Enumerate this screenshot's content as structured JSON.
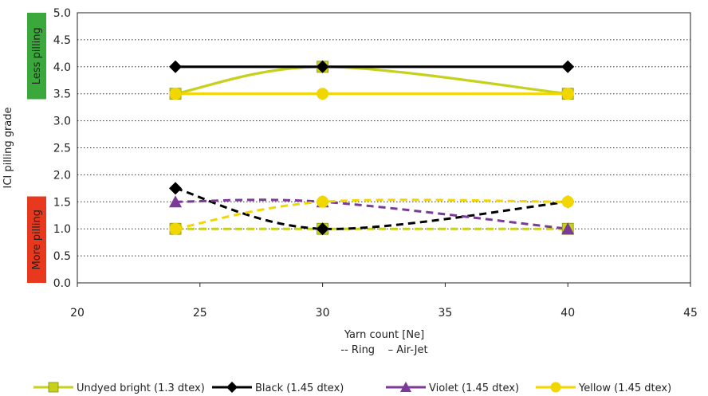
{
  "chart_data": {
    "type": "line",
    "xlabel": "Yarn count [Ne]",
    "xlabel_sub": "-- Ring    – Air-Jet",
    "ylabel": "ICI pilling grade",
    "xlim": [
      20,
      45
    ],
    "ylim": [
      0,
      5
    ],
    "x_ticks": [
      "20",
      "25",
      "30",
      "35",
      "40",
      "45"
    ],
    "y_ticks": [
      "0.0",
      "0.5",
      "1.0",
      "1.5",
      "2.0",
      "2.5",
      "3.0",
      "3.5",
      "4.0",
      "4.5",
      "5.0"
    ],
    "grid": "horizontal dotted",
    "legend_position": "bottom",
    "bands": {
      "upper": {
        "label": "Less pilling",
        "color": "#3aa83a",
        "range": [
          3.4,
          5.0
        ]
      },
      "lower": {
        "label": "More pilling",
        "color": "#e8391e",
        "range": [
          0.0,
          1.6
        ]
      }
    },
    "series": [
      {
        "name": "Undyed bright (1.3 dtex)",
        "color": "#c5d11b",
        "marker": "square",
        "process": "Air-Jet",
        "x": [
          24,
          30,
          40
        ],
        "values": [
          3.5,
          4.0,
          3.5
        ]
      },
      {
        "name": "Undyed bright (1.3 dtex)",
        "color": "#c5d11b",
        "marker": "square",
        "process": "Ring",
        "x": [
          24,
          30,
          40
        ],
        "values": [
          1.0,
          1.0,
          1.0
        ]
      },
      {
        "name": "Black (1.45 dtex)",
        "color": "#000000",
        "marker": "diamond",
        "process": "Air-Jet",
        "x": [
          24,
          30,
          40
        ],
        "values": [
          4.0,
          4.0,
          4.0
        ]
      },
      {
        "name": "Black (1.45 dtex)",
        "color": "#000000",
        "marker": "diamond",
        "process": "Ring",
        "x": [
          24,
          30,
          40
        ],
        "values": [
          1.75,
          1.0,
          1.5
        ]
      },
      {
        "name": "Violet (1.45 dtex)",
        "color": "#7a3a96",
        "marker": "triangle",
        "process": "Ring",
        "x": [
          24,
          30,
          40
        ],
        "values": [
          1.5,
          1.5,
          1.0
        ]
      },
      {
        "name": "Yellow (1.45 dtex)",
        "color": "#f2d600",
        "marker": "circle",
        "process": "Air-Jet",
        "x": [
          24,
          30,
          40
        ],
        "values": [
          3.5,
          3.5,
          3.5
        ]
      },
      {
        "name": "Yellow (1.45 dtex)",
        "color": "#f2d600",
        "marker": "circle",
        "process": "Ring",
        "x": [
          24,
          30,
          40
        ],
        "values": [
          1.0,
          1.5,
          1.5
        ]
      }
    ],
    "legend": [
      {
        "label": "Undyed bright (1.3 dtex)",
        "color": "#c5d11b",
        "marker": "square"
      },
      {
        "label": "Black (1.45 dtex)",
        "color": "#000000",
        "marker": "diamond"
      },
      {
        "label": "Violet (1.45 dtex)",
        "color": "#7a3a96",
        "marker": "triangle"
      },
      {
        "label": "Yellow (1.45 dtex)",
        "color": "#f2d600",
        "marker": "circle"
      }
    ]
  }
}
